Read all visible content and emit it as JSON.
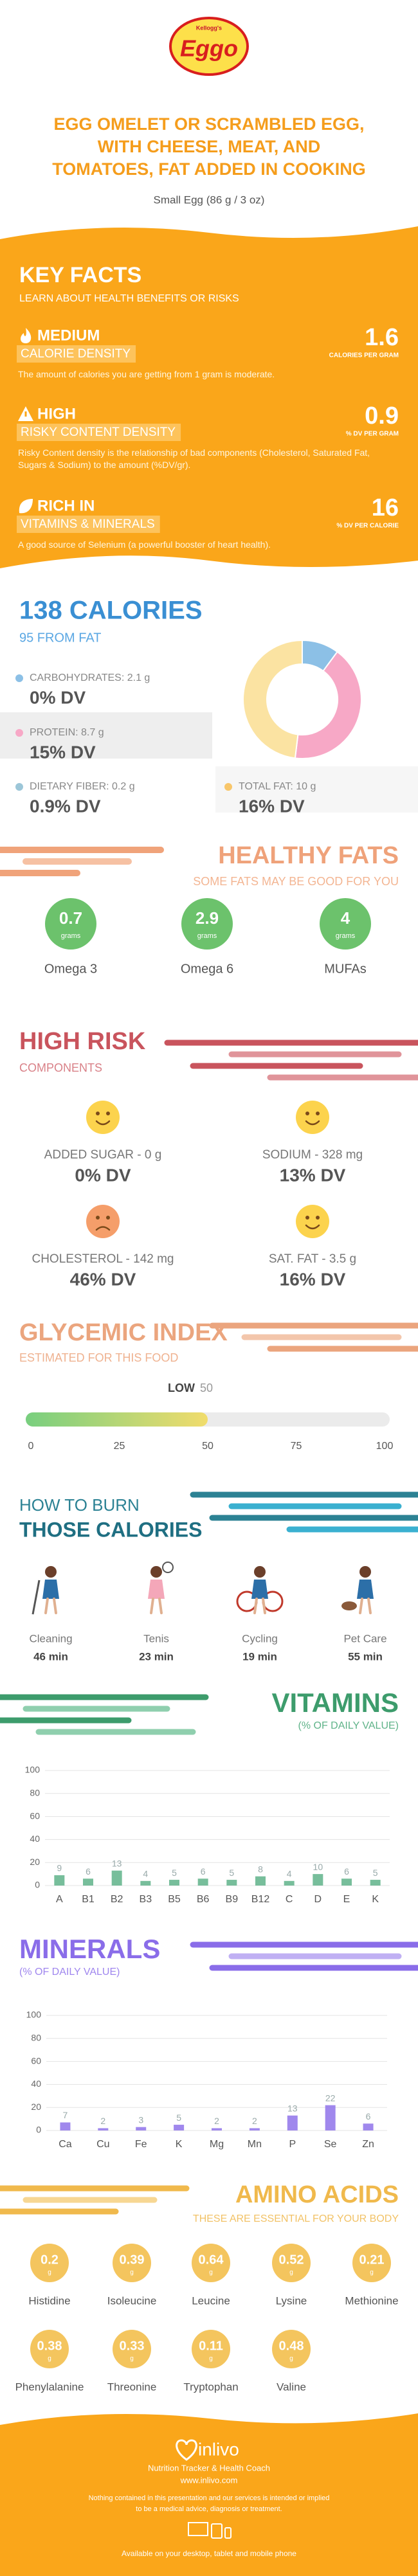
{
  "header": {
    "logo_small": "Kellogg's",
    "logo": "Eggo",
    "title_lines": [
      "EGG OMELET OR SCRAMBLED EGG,",
      "WITH CHEESE, MEAT, AND",
      "TOMATOES, FAT ADDED IN COOKING"
    ],
    "serving": "Small Egg (86 g / 3 oz)"
  },
  "key_facts": {
    "title": "KEY FACTS",
    "subtitle": "LEARN ABOUT HEALTH BENEFITS OR RISKS",
    "facts": [
      {
        "level": "MEDIUM",
        "name": "CALORIE DENSITY",
        "value": 1.6,
        "unit": "CALORIES PER GRAM",
        "description": "The amount of calories you are getting from 1 gram is moderate.",
        "icon": "flame"
      },
      {
        "level": "HIGH",
        "name": "RISKY CONTENT DENSITY",
        "value": 0.9,
        "unit": "% DV PER GRAM",
        "description": "Risky Content density is the relationship of bad components (Cholesterol, Saturated Fat, Sugars & Sodium) to the amount (%DV/gr).",
        "icon": "warning"
      },
      {
        "level": "RICH IN",
        "name": "VITAMINS & MINERALS",
        "value": 16,
        "unit": "% DV PER CALORIE",
        "description": "A good source of Selenium (a powerful booster of heart health).",
        "icon": "leaf"
      }
    ]
  },
  "calories": {
    "title": "138 CALORIES",
    "subtitle": "95 FROM FAT",
    "nutrients": [
      {
        "label": "CARBOHYDRATES: 2.1 g",
        "dv": "0% DV",
        "color": "#8cc0e6"
      },
      {
        "label": "PROTEIN: 8.7 g",
        "dv": "15% DV",
        "color": "#f7a8c6"
      },
      {
        "label": "DIETARY FIBER: 0.2 g",
        "dv": "0.9% DV",
        "color": "#9cc6d8"
      },
      {
        "label": "TOTAL FAT: 10 g",
        "dv": "16% DV",
        "color": "#f8c66a"
      }
    ]
  },
  "healthy_fats": {
    "title": "HEALTHY FATS",
    "subtitle": "SOME FATS MAY BE GOOD FOR YOU",
    "unit": "grams",
    "items": [
      {
        "name": "Omega 3",
        "value": 0.7
      },
      {
        "name": "Omega 6",
        "value": 2.9
      },
      {
        "name": "MUFAs",
        "value": 4
      }
    ]
  },
  "high_risk": {
    "title": "HIGH RISK",
    "subtitle": "COMPONENTS",
    "items": [
      {
        "label": "ADDED SUGAR - 0 g",
        "dv": "0% DV",
        "icon": "happy"
      },
      {
        "label": "SODIUM - 328 mg",
        "dv": "13% DV",
        "icon": "happy"
      },
      {
        "label": "CHOLESTEROL - 142 mg",
        "dv": "46% DV",
        "icon": "sad"
      },
      {
        "label": "SAT. FAT - 3.5 g",
        "dv": "16% DV",
        "icon": "happy"
      }
    ]
  },
  "glycemic": {
    "title": "GLYCEMIC INDEX",
    "subtitle": "ESTIMATED FOR THIS FOOD"
  },
  "burn": {
    "title": "HOW TO BURN",
    "subtitle": "THOSE CALORIES",
    "activities": [
      {
        "name": "Cleaning",
        "time": "46 min",
        "icon": "cleaning"
      },
      {
        "name": "Tenis",
        "time": "23 min",
        "icon": "tennis"
      },
      {
        "name": "Cycling",
        "time": "19 min",
        "icon": "cycling"
      },
      {
        "name": "Pet Care",
        "time": "55 min",
        "icon": "pet"
      }
    ]
  },
  "vitamins": {
    "title": "VITAMINS",
    "subtitle": "(% OF DAILY VALUE)"
  },
  "minerals": {
    "title": "MINERALS",
    "subtitle": "(% OF DAILY VALUE)"
  },
  "amino_acids": {
    "title": "AMINO ACIDS",
    "subtitle": "THESE ARE ESSENTIAL FOR YOUR BODY",
    "unit": "g",
    "items": [
      {
        "name": "Histidine",
        "value": 0.2
      },
      {
        "name": "Isoleucine",
        "value": 0.39
      },
      {
        "name": "Leucine",
        "value": 0.64
      },
      {
        "name": "Lysine",
        "value": 0.52
      },
      {
        "name": "Methionine",
        "value": 0.21
      },
      {
        "name": "Phenylalanine",
        "value": 0.38
      },
      {
        "name": "Threonine",
        "value": 0.33
      },
      {
        "name": "Tryptophan",
        "value": 0.11
      },
      {
        "name": "Valine",
        "value": 0.48
      }
    ]
  },
  "footer": {
    "brand": "inlivo",
    "tagline": "Nutrition Tracker & Health Coach",
    "url": "www.inlivo.com",
    "disclaimer_lines": [
      "Nothing contained in this presentation and our services is intended or implied",
      "to be a medical advice, diagnosis or treatment."
    ],
    "availability": "Available on your desktop, tablet and mobile phone"
  },
  "chart_data": [
    {
      "type": "donut",
      "values": [
        2.1,
        8.7,
        10
      ],
      "colors": [
        "#8cc0e6",
        "#f7a8c6",
        "#fbe3a2"
      ]
    },
    {
      "type": "gauge",
      "label": "LOW",
      "value": 50,
      "xlim": [
        0,
        100
      ],
      "xticks": [
        0,
        25,
        50,
        75,
        100
      ]
    },
    {
      "type": "bar",
      "categories": [
        "A",
        "B1",
        "B2",
        "B3",
        "B5",
        "B6",
        "B9",
        "B12",
        "C",
        "D",
        "E",
        "K"
      ],
      "values": [
        9,
        6,
        13,
        4,
        5,
        6,
        5,
        8,
        4,
        10,
        6,
        5
      ],
      "color": "#5fb389",
      "ylim": [
        0,
        100
      ],
      "yticks": [
        0,
        20,
        40,
        60,
        80,
        100
      ],
      "grid": true
    },
    {
      "type": "bar",
      "categories": [
        "Ca",
        "Cu",
        "Fe",
        "K",
        "Mg",
        "Mn",
        "P",
        "Se",
        "Zn"
      ],
      "values": [
        7,
        2,
        3,
        5,
        2,
        2,
        13,
        22,
        6
      ],
      "color": "#8f73ea",
      "ylim": [
        0,
        100
      ],
      "yticks": [
        0,
        20,
        40,
        60,
        80,
        100
      ],
      "grid": true
    }
  ]
}
